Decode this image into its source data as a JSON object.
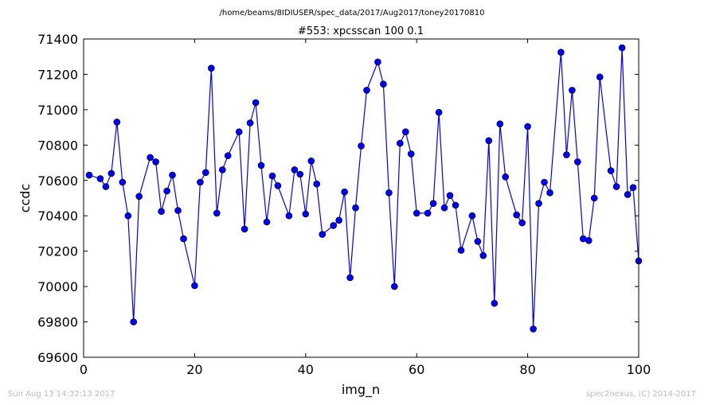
{
  "header": {
    "path": "/home/beams/8IDIUSER/spec_data/2017/Aug2017/toney20170810",
    "date": "Sun Aug 13 14:32:13 2017",
    "credit": "spec2nexus, (C) 2014-2017"
  },
  "chart_data": {
    "type": "line",
    "title": "#553: xpcsscan 100 0.1",
    "xlabel": "img_n",
    "ylabel": "ccdc",
    "xlim": [
      0,
      100
    ],
    "ylim": [
      69600,
      71400
    ],
    "xticks": [
      0,
      20,
      40,
      60,
      80,
      100
    ],
    "yticks": [
      69600,
      69800,
      70000,
      70200,
      70400,
      70600,
      70800,
      71000,
      71200,
      71400
    ],
    "grid": false,
    "line_color": "#0000ff",
    "marker": "circle",
    "x": [
      1,
      3,
      4,
      5,
      6,
      7,
      8,
      9,
      10,
      12,
      13,
      14,
      15,
      16,
      17,
      18,
      20,
      21,
      22,
      23,
      24,
      25,
      26,
      28,
      29,
      30,
      31,
      32,
      33,
      34,
      35,
      37,
      38,
      39,
      40,
      41,
      42,
      43,
      45,
      46,
      47,
      48,
      49,
      50,
      51,
      53,
      54,
      55,
      56,
      57,
      58,
      59,
      60,
      62,
      63,
      64,
      65,
      66,
      67,
      68,
      70,
      71,
      72,
      73,
      74,
      75,
      76,
      78,
      79,
      80,
      81,
      82,
      83,
      84,
      86,
      87,
      88,
      89,
      90,
      91,
      92,
      93,
      95,
      96,
      97,
      98,
      99,
      100
    ],
    "y": [
      70630,
      70610,
      70565,
      70640,
      70930,
      70590,
      70400,
      69800,
      70510,
      70730,
      70705,
      70425,
      70540,
      70630,
      70430,
      70270,
      70005,
      70590,
      70645,
      71235,
      70415,
      70660,
      70740,
      70875,
      70325,
      70925,
      71040,
      70685,
      70365,
      70625,
      70570,
      70400,
      70660,
      70635,
      70410,
      70710,
      70580,
      70295,
      70345,
      70375,
      70535,
      70050,
      70445,
      70795,
      71110,
      71270,
      71145,
      70530,
      70000,
      70810,
      70875,
      70750,
      70415,
      70415,
      70470,
      70985,
      70445,
      70515,
      70460,
      70205,
      70400,
      70255,
      70175,
      70825,
      69905,
      70920,
      70620,
      70405,
      70360,
      70905,
      69760,
      70470,
      70590,
      70530,
      71325,
      70745,
      71110,
      70705,
      70270,
      70260,
      70500,
      71185,
      70655,
      70565,
      71350,
      70520,
      70560,
      70145
    ]
  }
}
